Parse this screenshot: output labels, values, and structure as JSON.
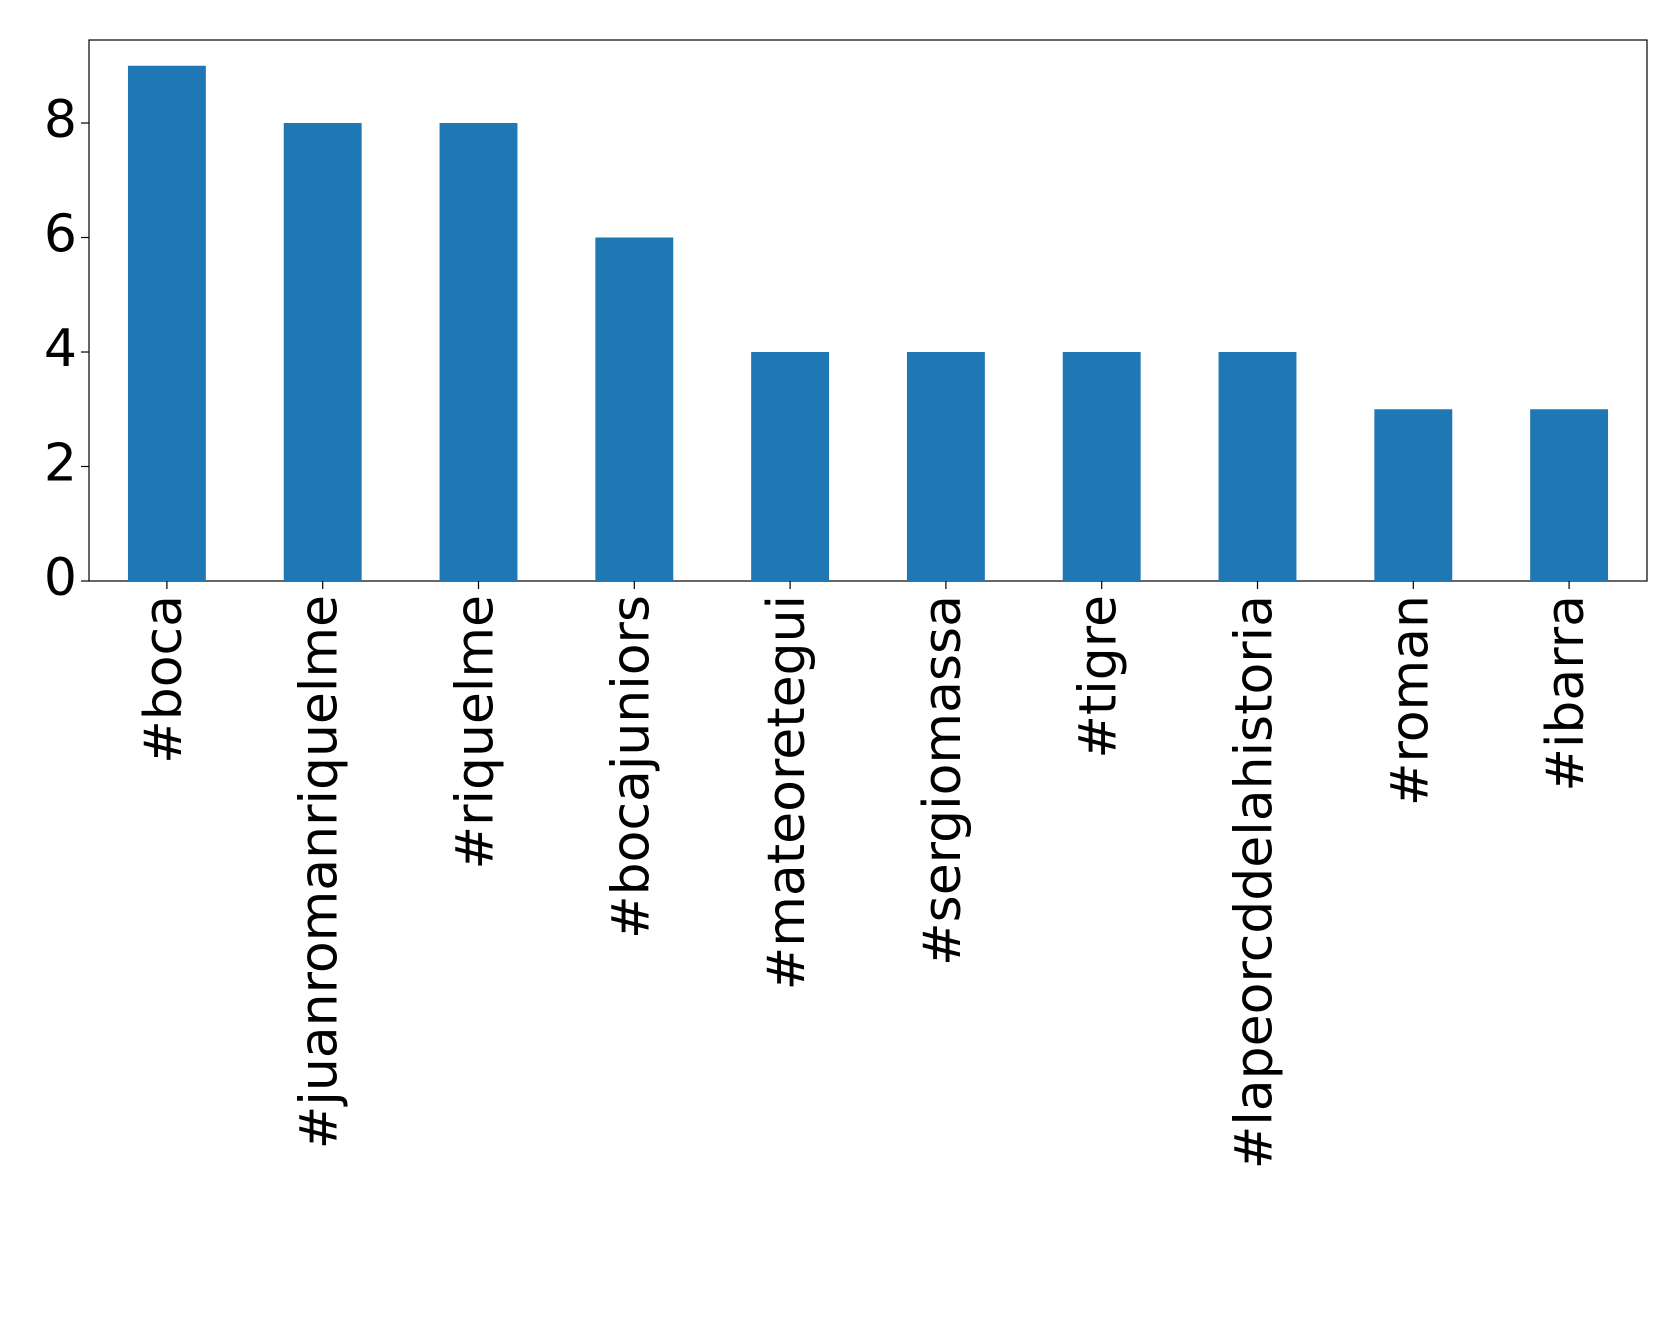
{
  "chart_data": {
    "type": "bar",
    "categories": [
      "#boca",
      "#juanromanriquelme",
      "#riquelme",
      "#bocajuniors",
      "#mateoretegui",
      "#sergiomassa",
      "#tigre",
      "#lapeorcddelahistoria",
      "#roman",
      "#ibarra"
    ],
    "values": [
      9,
      8,
      8,
      6,
      4,
      4,
      4,
      4,
      3,
      3
    ],
    "color": "#1f77b4",
    "ylim": [
      0,
      9.45
    ],
    "yticks": [
      0,
      2,
      4,
      6,
      8
    ],
    "grid": false
  }
}
